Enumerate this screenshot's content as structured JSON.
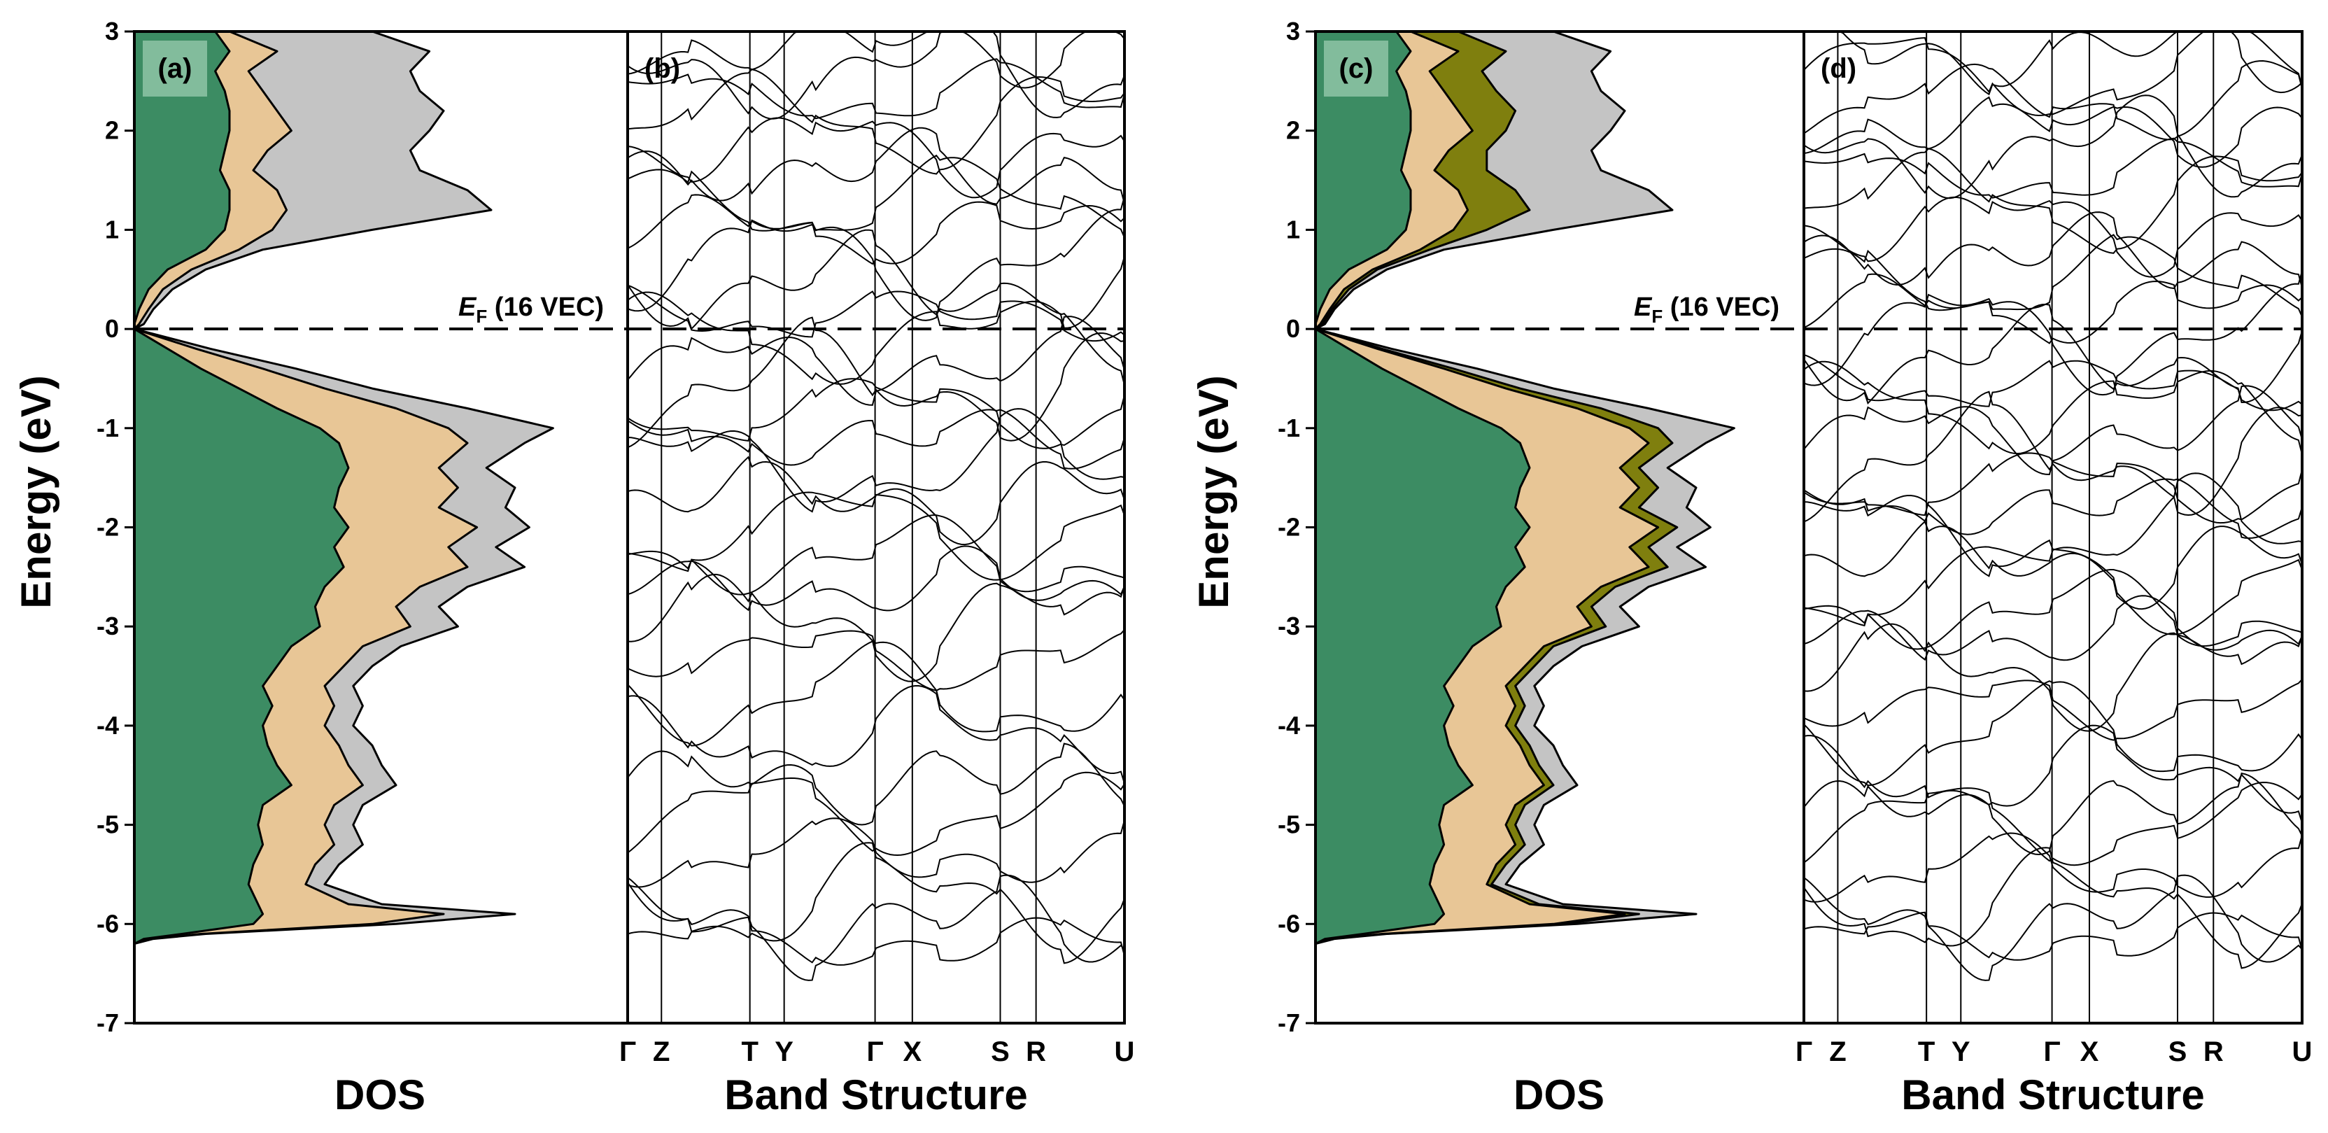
{
  "chart_data": {
    "type": "area",
    "y_axis": {
      "label": "Energy (eV)",
      "ylim": [
        -7,
        3
      ],
      "ticks": [
        3,
        2,
        1,
        0,
        -1,
        -2,
        -3,
        -4,
        -5,
        -6,
        -7
      ],
      "tick_labels": [
        "3",
        "2",
        "1",
        "0",
        "-1",
        "-2",
        "-3",
        "-4",
        "-5",
        "-6",
        "-7"
      ]
    },
    "fermi_level": {
      "energy": 0,
      "label_italic": "E",
      "label_sub": "F",
      "label_rest": " (16 VEC)"
    },
    "colors": {
      "green": "#3c8c63",
      "tan": "#e8c696",
      "gray": "#c4c4c4",
      "olive": "#7f7f0e",
      "line": "#000000",
      "tag_bg": "#82bc9c"
    },
    "energy_grid": [
      3.0,
      2.8,
      2.6,
      2.4,
      2.2,
      2.0,
      1.8,
      1.6,
      1.4,
      1.2,
      1.0,
      0.8,
      0.6,
      0.4,
      0.2,
      0.05,
      0.0,
      -0.2,
      -0.4,
      -0.6,
      -0.8,
      -1.0,
      -1.15,
      -1.4,
      -1.6,
      -1.8,
      -2.0,
      -2.2,
      -2.4,
      -2.6,
      -2.8,
      -3.0,
      -3.2,
      -3.4,
      -3.6,
      -3.8,
      -4.0,
      -4.2,
      -4.4,
      -4.6,
      -4.8,
      -5.0,
      -5.2,
      -5.4,
      -5.6,
      -5.8,
      -5.9,
      -6.0,
      -6.1,
      -6.15,
      -6.2
    ],
    "panels": [
      {
        "tag": "(a)",
        "type": "dos",
        "xlabel": "DOS",
        "series": [
          {
            "name": "green",
            "values": [
              0.17,
              0.2,
              0.17,
              0.19,
              0.2,
              0.2,
              0.19,
              0.18,
              0.2,
              0.2,
              0.19,
              0.15,
              0.07,
              0.03,
              0.01,
              0.0,
              0.0,
              0.07,
              0.14,
              0.22,
              0.3,
              0.39,
              0.43,
              0.45,
              0.43,
              0.42,
              0.45,
              0.42,
              0.44,
              0.4,
              0.38,
              0.39,
              0.33,
              0.3,
              0.27,
              0.29,
              0.27,
              0.28,
              0.3,
              0.33,
              0.27,
              0.26,
              0.27,
              0.25,
              0.24,
              0.26,
              0.27,
              0.25,
              0.1,
              0.02,
              0.0
            ]
          },
          {
            "name": "tan",
            "values": [
              0.2,
              0.3,
              0.24,
              0.27,
              0.3,
              0.33,
              0.28,
              0.25,
              0.3,
              0.32,
              0.29,
              0.22,
              0.12,
              0.06,
              0.03,
              0.01,
              0.0,
              0.13,
              0.27,
              0.4,
              0.55,
              0.66,
              0.7,
              0.64,
              0.68,
              0.64,
              0.72,
              0.66,
              0.7,
              0.6,
              0.55,
              0.58,
              0.48,
              0.44,
              0.4,
              0.42,
              0.4,
              0.43,
              0.45,
              0.48,
              0.42,
              0.4,
              0.42,
              0.38,
              0.36,
              0.45,
              0.65,
              0.5,
              0.14,
              0.03,
              0.0
            ]
          },
          {
            "name": "gray",
            "values": [
              0.5,
              0.62,
              0.58,
              0.6,
              0.65,
              0.62,
              0.58,
              0.6,
              0.7,
              0.75,
              0.5,
              0.27,
              0.15,
              0.08,
              0.04,
              0.02,
              0.0,
              0.16,
              0.34,
              0.5,
              0.7,
              0.88,
              0.82,
              0.74,
              0.8,
              0.78,
              0.83,
              0.76,
              0.82,
              0.7,
              0.64,
              0.68,
              0.56,
              0.5,
              0.46,
              0.48,
              0.46,
              0.5,
              0.52,
              0.55,
              0.48,
              0.46,
              0.48,
              0.43,
              0.4,
              0.52,
              0.8,
              0.55,
              0.15,
              0.04,
              0.0
            ]
          }
        ]
      },
      {
        "tag": "(b)",
        "type": "bands",
        "xlabel": "Band Structure",
        "kpath": [
          "Γ",
          "Z",
          "T",
          "Y",
          "Γ",
          "X",
          "S",
          "R",
          "U"
        ],
        "band_energies": [
          -6.2,
          -6.0,
          -5.75,
          -5.3,
          -4.9,
          -4.55,
          -4.1,
          -3.7,
          -3.3,
          -2.95,
          -2.6,
          -2.3,
          -2.0,
          -1.7,
          -1.4,
          -1.1,
          -0.8,
          -0.55,
          -0.35,
          -0.1,
          0.15,
          0.45,
          0.7,
          1.0,
          1.3,
          1.6,
          1.85,
          2.1,
          2.35,
          2.6,
          2.85
        ]
      },
      {
        "tag": "(c)",
        "type": "dos",
        "xlabel": "DOS",
        "series": [
          {
            "name": "green",
            "values": [
              0.17,
              0.2,
              0.17,
              0.19,
              0.2,
              0.2,
              0.19,
              0.18,
              0.2,
              0.2,
              0.19,
              0.15,
              0.07,
              0.03,
              0.01,
              0.0,
              0.0,
              0.07,
              0.14,
              0.22,
              0.3,
              0.39,
              0.43,
              0.45,
              0.43,
              0.42,
              0.45,
              0.42,
              0.44,
              0.4,
              0.38,
              0.39,
              0.33,
              0.3,
              0.27,
              0.29,
              0.27,
              0.28,
              0.3,
              0.33,
              0.27,
              0.26,
              0.27,
              0.25,
              0.24,
              0.26,
              0.27,
              0.25,
              0.1,
              0.02,
              0.0
            ]
          },
          {
            "name": "tan",
            "values": [
              0.2,
              0.3,
              0.24,
              0.27,
              0.3,
              0.33,
              0.28,
              0.25,
              0.3,
              0.32,
              0.29,
              0.22,
              0.12,
              0.06,
              0.03,
              0.01,
              0.0,
              0.13,
              0.27,
              0.4,
              0.55,
              0.66,
              0.7,
              0.64,
              0.68,
              0.64,
              0.72,
              0.66,
              0.7,
              0.6,
              0.55,
              0.58,
              0.48,
              0.44,
              0.4,
              0.42,
              0.4,
              0.43,
              0.45,
              0.48,
              0.42,
              0.4,
              0.42,
              0.38,
              0.36,
              0.45,
              0.65,
              0.5,
              0.14,
              0.03,
              0.0
            ]
          },
          {
            "name": "olive",
            "values": [
              0.3,
              0.4,
              0.35,
              0.38,
              0.42,
              0.4,
              0.36,
              0.36,
              0.42,
              0.45,
              0.36,
              0.24,
              0.13,
              0.07,
              0.035,
              0.015,
              0.0,
              0.14,
              0.29,
              0.43,
              0.6,
              0.72,
              0.75,
              0.68,
              0.72,
              0.68,
              0.76,
              0.7,
              0.74,
              0.63,
              0.58,
              0.61,
              0.5,
              0.46,
              0.42,
              0.44,
              0.42,
              0.45,
              0.47,
              0.5,
              0.44,
              0.42,
              0.44,
              0.4,
              0.37,
              0.47,
              0.68,
              0.52,
              0.145,
              0.035,
              0.0
            ]
          },
          {
            "name": "gray",
            "values": [
              0.5,
              0.62,
              0.58,
              0.6,
              0.65,
              0.62,
              0.58,
              0.6,
              0.7,
              0.75,
              0.5,
              0.27,
              0.15,
              0.08,
              0.04,
              0.02,
              0.0,
              0.16,
              0.34,
              0.5,
              0.7,
              0.88,
              0.82,
              0.74,
              0.8,
              0.78,
              0.83,
              0.76,
              0.82,
              0.7,
              0.64,
              0.68,
              0.56,
              0.5,
              0.46,
              0.48,
              0.46,
              0.5,
              0.52,
              0.55,
              0.48,
              0.46,
              0.48,
              0.43,
              0.4,
              0.52,
              0.8,
              0.55,
              0.15,
              0.04,
              0.0
            ]
          }
        ]
      },
      {
        "tag": "(d)",
        "type": "bands",
        "xlabel": "Band Structure",
        "kpath": [
          "Γ",
          "Z",
          "T",
          "Y",
          "Γ",
          "X",
          "S",
          "R",
          "U"
        ],
        "band_energies": [
          -6.15,
          -6.0,
          -5.8,
          -5.45,
          -5.0,
          -4.85,
          -4.5,
          -4.1,
          -3.8,
          -3.45,
          -3.1,
          -2.85,
          -2.55,
          -2.35,
          -2.05,
          -1.8,
          -1.55,
          -1.3,
          -1.05,
          -0.8,
          -0.55,
          -0.3,
          -0.05,
          0.2,
          0.5,
          0.75,
          1.05,
          1.3,
          1.55,
          1.8,
          2.05,
          2.3,
          2.55,
          2.8
        ]
      }
    ]
  }
}
